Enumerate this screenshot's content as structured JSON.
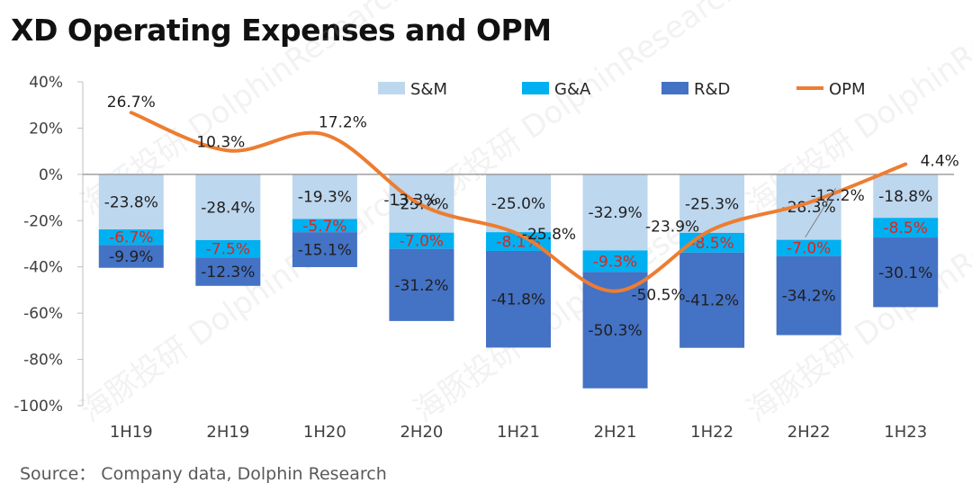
{
  "title": "XD Operating Expenses and OPM",
  "source": "Source： Company data, Dolphin Research",
  "watermark": "海豚投研 DolphinResearch",
  "chart_data": {
    "type": "bar",
    "stacked": true,
    "categories": [
      "1H19",
      "2H19",
      "1H20",
      "2H20",
      "1H21",
      "2H21",
      "1H22",
      "2H22",
      "1H23"
    ],
    "ylim": [
      -100,
      40
    ],
    "yticks": [
      40,
      20,
      0,
      -20,
      -40,
      -60,
      -80,
      -100
    ],
    "ytick_labels": [
      "40%",
      "20%",
      "0%",
      "-20%",
      "-40%",
      "-60%",
      "-80%",
      "-100%"
    ],
    "legend_position": "top",
    "series": [
      {
        "name": "S&M",
        "kind": "bar",
        "color": "#bdd7ee",
        "label_color": "#1f1f1f",
        "values": [
          -23.8,
          -28.4,
          -19.3,
          -25.2,
          -25.0,
          -32.9,
          -25.3,
          -28.3,
          -18.8
        ],
        "labels": [
          "-23.8%",
          "-28.4%",
          "-19.3%",
          "-25.2%",
          "-25.0%",
          "-32.9%",
          "-25.3%",
          "-28.3%",
          "-18.8%"
        ]
      },
      {
        "name": "G&A",
        "kind": "bar",
        "color": "#00b0f0",
        "label_color": "#e2231a",
        "values": [
          -6.7,
          -7.5,
          -5.7,
          -7.0,
          -8.1,
          -9.3,
          -8.5,
          -7.0,
          -8.5
        ],
        "labels": [
          "-6.7%",
          "-7.5%",
          "-5.7%",
          "-7.0%",
          "-8.1%",
          "-9.3%",
          "-8.5%",
          "-7.0%",
          "-8.5%"
        ]
      },
      {
        "name": "R&D",
        "kind": "bar",
        "color": "#4472c4",
        "label_color": "#1f1f1f",
        "values": [
          -9.9,
          -12.3,
          -15.1,
          -31.2,
          -41.8,
          -50.3,
          -41.2,
          -34.2,
          -30.1
        ],
        "labels": [
          "-9.9%",
          "-12.3%",
          "-15.1%",
          "-31.2%",
          "-41.8%",
          "-50.3%",
          "-41.2%",
          "-34.2%",
          "-30.1%"
        ]
      },
      {
        "name": "OPM",
        "kind": "line",
        "color": "#ed7d31",
        "label_color": "#1f1f1f",
        "values": [
          26.7,
          10.3,
          17.2,
          -13.3,
          -25.8,
          -50.5,
          -23.9,
          -12.2,
          4.4
        ],
        "labels": [
          "26.7%",
          "10.3%",
          "17.2%",
          "-13.3%",
          "-25.8%",
          "-50.5%",
          "-23.9%",
          "-12.2%",
          "4.4%"
        ]
      }
    ]
  }
}
